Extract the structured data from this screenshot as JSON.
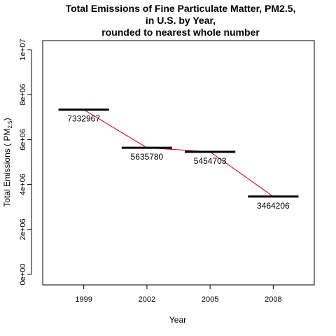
{
  "chart_data": {
    "type": "line",
    "title": [
      "Total Emissions of Fine Particulate Matter, PM2.5,",
      "in U.S. by Year,",
      "rounded to nearest whole number"
    ],
    "xlabel": "Year",
    "ylabel": "Total Emissions ( PM",
    "ylabel_subscript": "2.5",
    "ylabel_suffix": ")",
    "categories": [
      "1999",
      "2002",
      "2005",
      "2008"
    ],
    "values": [
      7332967,
      5635780,
      5454703,
      3464206
    ],
    "data_labels": [
      "7332967",
      "5635780",
      "5454703",
      "3464206"
    ],
    "ylim": [
      0,
      10000000
    ],
    "yticks": [
      0,
      2000000,
      4000000,
      6000000,
      8000000,
      10000000
    ],
    "ytick_labels": [
      "0e+00",
      "2e+06",
      "4e+06",
      "6e+06",
      "8e+06",
      "1e+07"
    ],
    "marker": "horizontal-bar",
    "marker_color": "#000000",
    "line_color": "#cc0000",
    "grid": false,
    "legend": "none"
  }
}
